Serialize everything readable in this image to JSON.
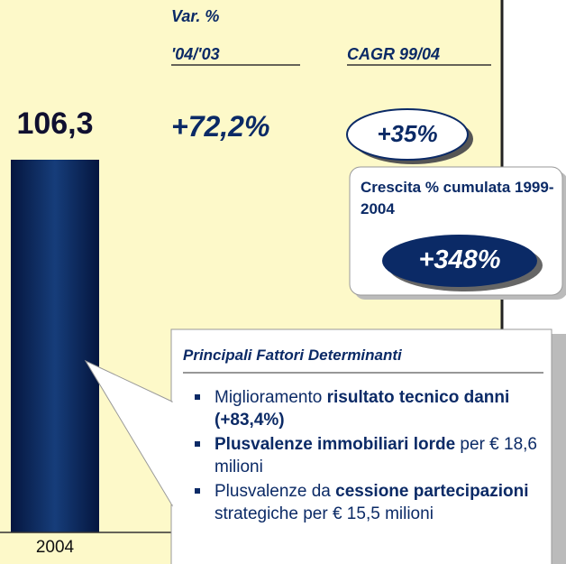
{
  "bar": {
    "value_label": "106,3",
    "year": "2004"
  },
  "columns": {
    "var_title": "Var. %",
    "var_period": "'04/'03",
    "var_value": "+72,2%",
    "cagr_title": "CAGR 99/04",
    "cagr_value": "+35%"
  },
  "cumulative": {
    "title": "Crescita % cumulata 1999-2004",
    "value": "+348%"
  },
  "factors": {
    "title": "Principali Fattori Determinanti",
    "bullets": [
      [
        {
          "text": "Miglioramento ",
          "bold": false
        },
        {
          "text": "risultato tecnico danni (+83,4%)",
          "bold": true
        }
      ],
      [
        {
          "text": "Plusvalenze immobiliari lorde",
          "bold": true
        },
        {
          "text": " per € 18,6 milioni",
          "bold": false
        }
      ],
      [
        {
          "text": "Plusvalenze da ",
          "bold": false
        },
        {
          "text": "cessione partecipazioni",
          "bold": true
        },
        {
          "text": " strategiche per € 15,5 milioni",
          "bold": false
        }
      ]
    ]
  }
}
